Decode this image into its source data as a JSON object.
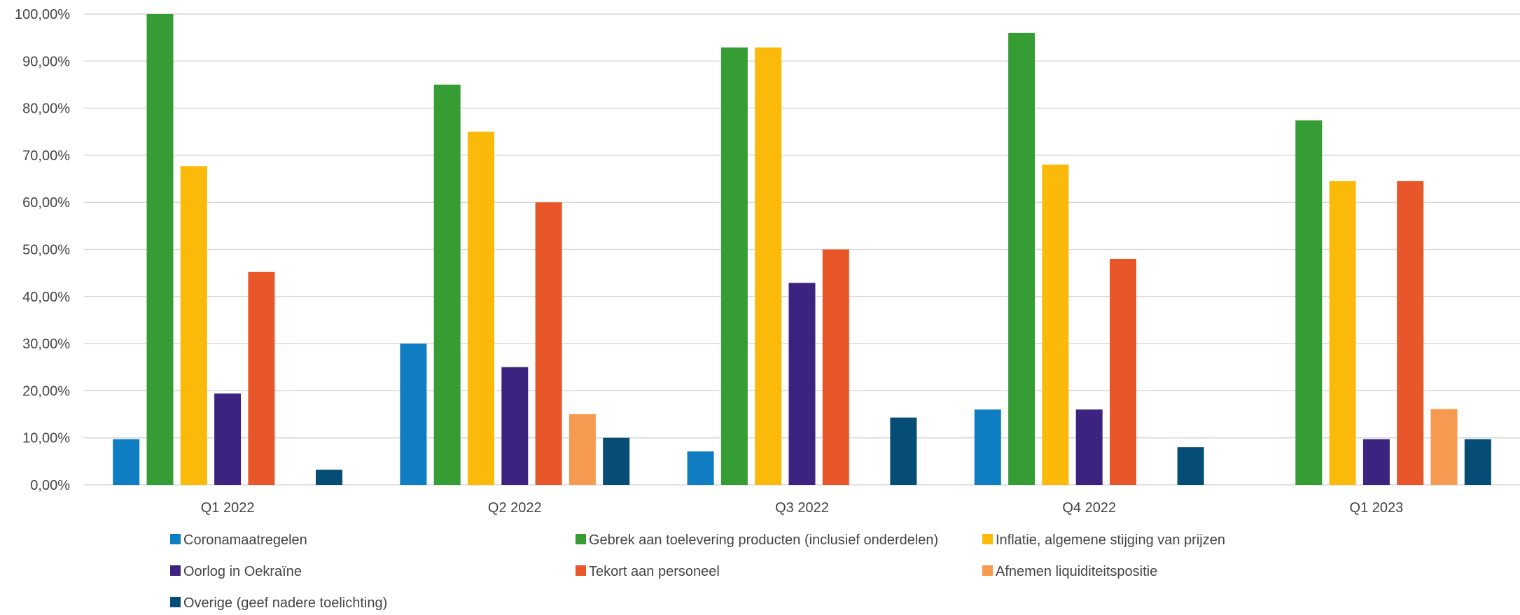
{
  "chart_data": {
    "type": "bar",
    "title": "",
    "xlabel": "",
    "ylabel": "",
    "ylim": [
      0,
      100
    ],
    "grid": true,
    "legend_position": "bottom",
    "y_ticks": [
      "0,00%",
      "10,00%",
      "20,00%",
      "30,00%",
      "40,00%",
      "50,00%",
      "60,00%",
      "70,00%",
      "80,00%",
      "90,00%",
      "100,00%"
    ],
    "categories": [
      "Q1 2022",
      "Q2 2022",
      "Q3 2022",
      "Q4 2022",
      "Q1 2023"
    ],
    "series": [
      {
        "name": "Coronamaatregelen",
        "color": "#0F7DC2",
        "values": [
          9.7,
          30.0,
          7.1,
          16.0,
          0
        ]
      },
      {
        "name": "Gebrek aan toelevering producten (inclusief onderdelen)",
        "color": "#369D35",
        "values": [
          100.0,
          85.0,
          92.9,
          96.0,
          77.4
        ]
      },
      {
        "name": "Inflatie, algemene stijging van prijzen",
        "color": "#FBBA0A",
        "values": [
          67.7,
          75.0,
          92.9,
          68.0,
          64.5
        ]
      },
      {
        "name": "Oorlog in Oekraïne",
        "color": "#3D2380",
        "values": [
          19.4,
          25.0,
          42.9,
          16.0,
          9.7
        ]
      },
      {
        "name": "Tekort aan personeel",
        "color": "#E8562A",
        "values": [
          45.2,
          60.0,
          50.0,
          48.0,
          64.5
        ]
      },
      {
        "name": "Afnemen liquiditeitspositie",
        "color": "#F59A4E",
        "values": [
          0,
          15.0,
          0,
          0,
          16.1
        ]
      },
      {
        "name": "Overige (geef nadere toelichting)",
        "color": "#054D74",
        "values": [
          3.2,
          10.0,
          14.3,
          8.0,
          9.7
        ]
      }
    ]
  }
}
